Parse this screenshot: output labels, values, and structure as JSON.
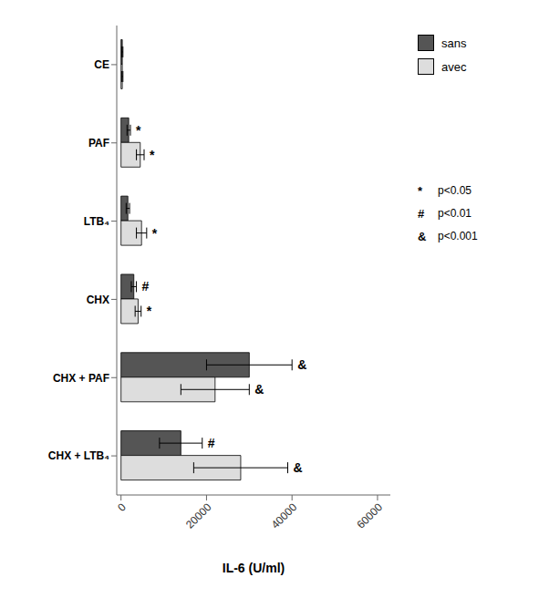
{
  "chart_data": {
    "type": "bar",
    "orientation": "horizontal",
    "categories": [
      "CE",
      "PAF",
      "LTB₄",
      "CHX",
      "CHX + PAF",
      "CHX + LTB₄"
    ],
    "series": [
      {
        "name": "sans",
        "color": "#555555",
        "values": [
          300,
          1800,
          1600,
          3000,
          30000,
          14000
        ],
        "errors": [
          150,
          400,
          400,
          600,
          10000,
          5000
        ],
        "annotations": [
          null,
          "*",
          null,
          "#",
          "&",
          "#"
        ]
      },
      {
        "name": "avec",
        "color": "#dddddd",
        "values": [
          300,
          4500,
          4800,
          4000,
          22000,
          28000
        ],
        "errors": [
          150,
          900,
          1200,
          700,
          8000,
          11000
        ],
        "annotations": [
          null,
          "*",
          "*",
          "*",
          "&",
          "&"
        ]
      }
    ],
    "xlabel": "IL-6   (U/ml)",
    "xlim": [
      -1000,
      63000
    ],
    "xticks": [
      0,
      20000,
      40000,
      60000
    ],
    "notes": [
      {
        "symbol": "*",
        "text": "p<0.05"
      },
      {
        "symbol": "#",
        "text": "p<0.01"
      },
      {
        "symbol": "&",
        "text": "p<0.001"
      }
    ],
    "legend": "right",
    "grid": false
  }
}
